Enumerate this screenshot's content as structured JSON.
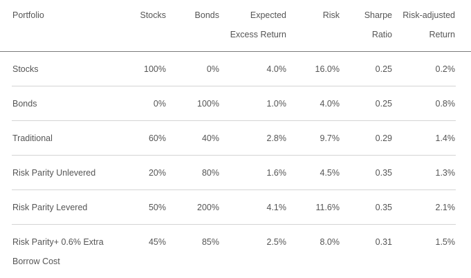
{
  "header": {
    "portfolio": "Portfolio",
    "stocks": "Stocks",
    "bonds": "Bonds",
    "expected_line1": "Expected",
    "expected_line2": "Excess Return",
    "risk": "Risk",
    "sharpe_line1": "Sharpe",
    "sharpe_line2": "Ratio",
    "adjusted_line1": "Risk-adjusted",
    "adjusted_line2": "Return"
  },
  "rows": [
    {
      "name": "Stocks",
      "stocks": "100%",
      "bonds": "0%",
      "ret": "4.0%",
      "risk": "16.0%",
      "sharpe": "0.25",
      "adj": "0.2%"
    },
    {
      "name": "Bonds",
      "stocks": "0%",
      "bonds": "100%",
      "ret": "1.0%",
      "risk": "4.0%",
      "sharpe": "0.25",
      "adj": "0.8%"
    },
    {
      "name": "Traditional",
      "stocks": "60%",
      "bonds": "40%",
      "ret": "2.8%",
      "risk": "9.7%",
      "sharpe": "0.29",
      "adj": "1.4%"
    },
    {
      "name": "Risk Parity Unlevered",
      "stocks": "20%",
      "bonds": "80%",
      "ret": "1.6%",
      "risk": "4.5%",
      "sharpe": "0.35",
      "adj": "1.3%"
    },
    {
      "name": "Risk Parity Levered",
      "stocks": "50%",
      "bonds": "200%",
      "ret": "4.1%",
      "risk": "11.6%",
      "sharpe": "0.35",
      "adj": "2.1%"
    },
    {
      "name": "Risk Parity+ 0.6% Extra Borrow Cost",
      "stocks": "45%",
      "bonds": "85%",
      "ret": "2.5%",
      "risk": "8.0%",
      "sharpe": "0.31",
      "adj": "1.5%"
    }
  ]
}
